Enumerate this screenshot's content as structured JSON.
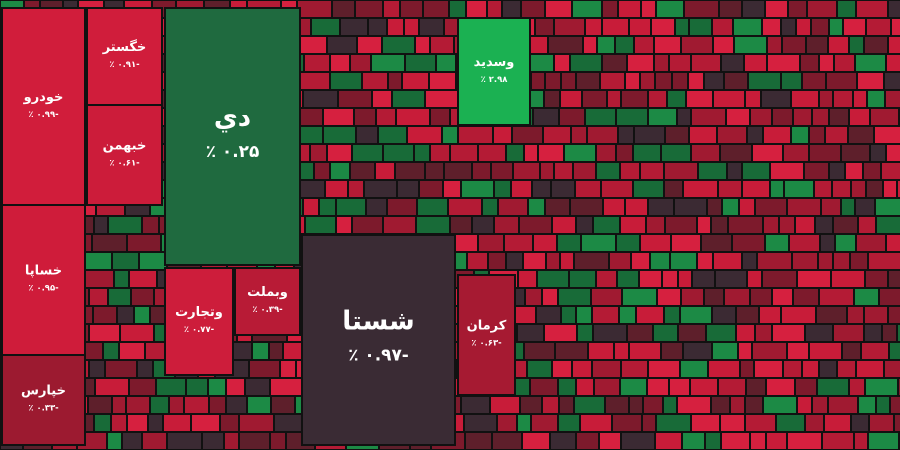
{
  "chart_data": {
    "type": "treemap",
    "categories": [
      "خودرو",
      "خساپا",
      "خپارس",
      "خگستر",
      "خبهمن",
      "دي",
      "شستا",
      "وسدید",
      "وتجارت",
      "وبملت",
      "کرمان"
    ],
    "values": [
      -0.99,
      -0.95,
      -0.33,
      -0.91,
      -0.61,
      0.25,
      -0.97,
      2.98,
      -0.77,
      -0.39,
      -0.63
    ],
    "value_labels": [
      "-۰.۹۹ ٪",
      "-۰.۹۵ ٪",
      "-۰.۳۳ ٪",
      "-۰.۹۱ ٪",
      "-۰.۶۱ ٪",
      "۰.۲۵ ٪",
      "-۰.۹۷ ٪",
      "۲.۹۸ ٪",
      "-۰.۷۷ ٪",
      "-۰.۳۹ ٪",
      "-۰.۶۳ ٪"
    ],
    "colors": [
      "#d11d3b",
      "#cf1c3a",
      "#9c1a30",
      "#d01d3b",
      "#cc1c3a",
      "#1f6a3f",
      "#3a2b34",
      "#1bb152",
      "#cd1d3b",
      "#b81b36",
      "#a61a32"
    ]
  }
}
